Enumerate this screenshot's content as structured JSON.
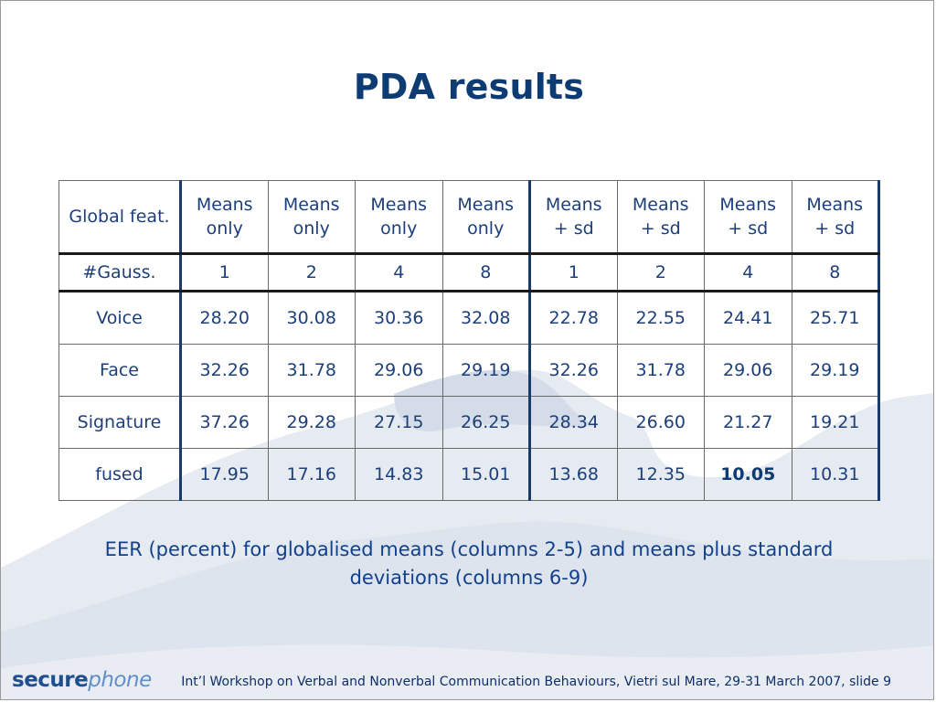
{
  "slide": {
    "title": "PDA results",
    "caption": "EER (percent) for globalised means (columns 2-5) and means plus standard deviations (columns 6-9)",
    "logo": {
      "part1": "secure",
      "part2": "phone"
    },
    "footer": "Int’l Workshop on Verbal and Nonverbal Communication Behaviours, Vietri sul Mare, 29-31 March 2007, slide 9"
  },
  "table": {
    "header_label": "Global feat.",
    "headers": [
      [
        "Means",
        "only"
      ],
      [
        "Means",
        "only"
      ],
      [
        "Means",
        "only"
      ],
      [
        "Means",
        "only"
      ],
      [
        "Means",
        "+ sd"
      ],
      [
        "Means",
        "+ sd"
      ],
      [
        "Means",
        "+ sd"
      ],
      [
        "Means",
        "+ sd"
      ]
    ],
    "gauss_label": "#Gauss.",
    "gauss": [
      "1",
      "2",
      "4",
      "8",
      "1",
      "2",
      "4",
      "8"
    ],
    "rows": [
      {
        "label": "Voice",
        "values": [
          "28.20",
          "30.08",
          "30.36",
          "32.08",
          "22.78",
          "22.55",
          "24.41",
          "25.71"
        ]
      },
      {
        "label": "Face",
        "values": [
          "32.26",
          "31.78",
          "29.06",
          "29.19",
          "32.26",
          "31.78",
          "29.06",
          "29.19"
        ]
      },
      {
        "label": "Signature",
        "values": [
          "37.26",
          "29.28",
          "27.15",
          "26.25",
          "28.34",
          "26.60",
          "21.27",
          "19.21"
        ]
      },
      {
        "label": "fused",
        "values": [
          "17.95",
          "17.16",
          "14.83",
          "15.01",
          "13.68",
          "12.35",
          "10.05",
          "10.31"
        ]
      }
    ],
    "highlight": {
      "row": 3,
      "col": 6
    }
  }
}
